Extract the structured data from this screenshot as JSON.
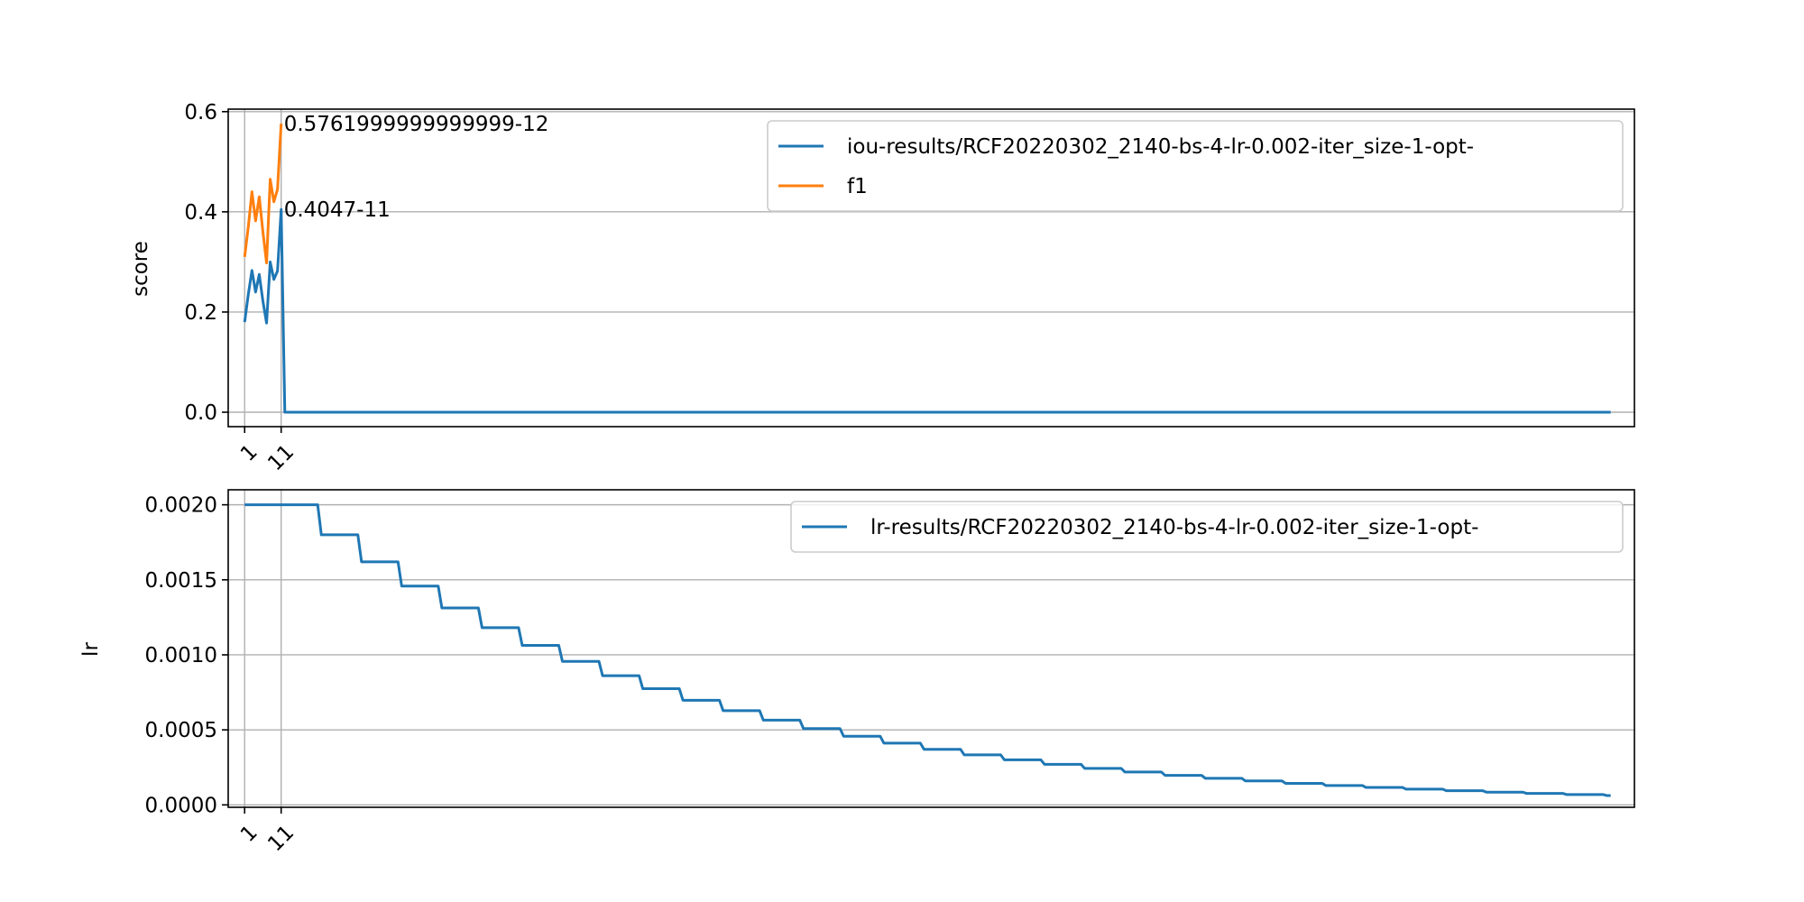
{
  "chart_data": [
    {
      "type": "line",
      "ylabel": "score",
      "xlim": [
        -3.5,
        381.5
      ],
      "ylim": [
        -0.0288,
        0.605
      ],
      "grid": true,
      "xticks": [
        {
          "value": 1,
          "label": "1"
        },
        {
          "value": 11,
          "label": "11"
        }
      ],
      "yticks": [
        {
          "value": 0.0,
          "label": "0.0"
        },
        {
          "value": 0.2,
          "label": "0.2"
        },
        {
          "value": 0.4,
          "label": "0.4"
        },
        {
          "value": 0.6,
          "label": "0.6"
        }
      ],
      "legend_position": "upper right",
      "series": [
        {
          "name": "iou-results/RCF20220302_2140-bs-4-lr-0.002-iter_size-1-opt-",
          "color": "#1f77b4",
          "points": [
            [
              1,
              0.18
            ],
            [
              2,
              0.235
            ],
            [
              3,
              0.283
            ],
            [
              4,
              0.24
            ],
            [
              5,
              0.275
            ],
            [
              6,
              0.222
            ],
            [
              7,
              0.178
            ],
            [
              8,
              0.3
            ],
            [
              9,
              0.265
            ],
            [
              10,
              0.282
            ],
            [
              11,
              0.4047
            ],
            [
              12,
              0.0
            ],
            [
              375,
              0.0
            ]
          ]
        },
        {
          "name": "f1",
          "color": "#ff7f0e",
          "points": [
            [
              1,
              0.31
            ],
            [
              2,
              0.37
            ],
            [
              3,
              0.44
            ],
            [
              4,
              0.382
            ],
            [
              5,
              0.43
            ],
            [
              6,
              0.36
            ],
            [
              7,
              0.298
            ],
            [
              8,
              0.465
            ],
            [
              9,
              0.42
            ],
            [
              10,
              0.445
            ],
            [
              11,
              0.5762
            ]
          ]
        }
      ],
      "annotations": [
        {
          "x": 11,
          "y": 0.5762,
          "text": "0.5761999999999999-12"
        },
        {
          "x": 11,
          "y": 0.4047,
          "text": "0.4047-11"
        }
      ]
    },
    {
      "type": "line",
      "ylabel": "lr",
      "xlim": [
        -3.5,
        381.5
      ],
      "ylim": [
        -1.6e-05,
        0.0021
      ],
      "grid": true,
      "xticks": [
        {
          "value": 1,
          "label": "1"
        },
        {
          "value": 11,
          "label": "11"
        }
      ],
      "yticks": [
        {
          "value": 0.0,
          "label": "0.0000"
        },
        {
          "value": 0.0005,
          "label": "0.0005"
        },
        {
          "value": 0.001,
          "label": "0.0010"
        },
        {
          "value": 0.0015,
          "label": "0.0015"
        },
        {
          "value": 0.002,
          "label": "0.0020"
        }
      ],
      "legend_position": "upper right",
      "series": [
        {
          "name": "lr-results/RCF20220302_2140-bs-4-lr-0.002-iter_size-1-opt-",
          "color": "#1f77b4",
          "step": {
            "x_start": 1,
            "x_end": 375,
            "initial": 0.002,
            "factor": 0.9,
            "first_drop": 22,
            "interval": 11
          }
        }
      ]
    }
  ]
}
